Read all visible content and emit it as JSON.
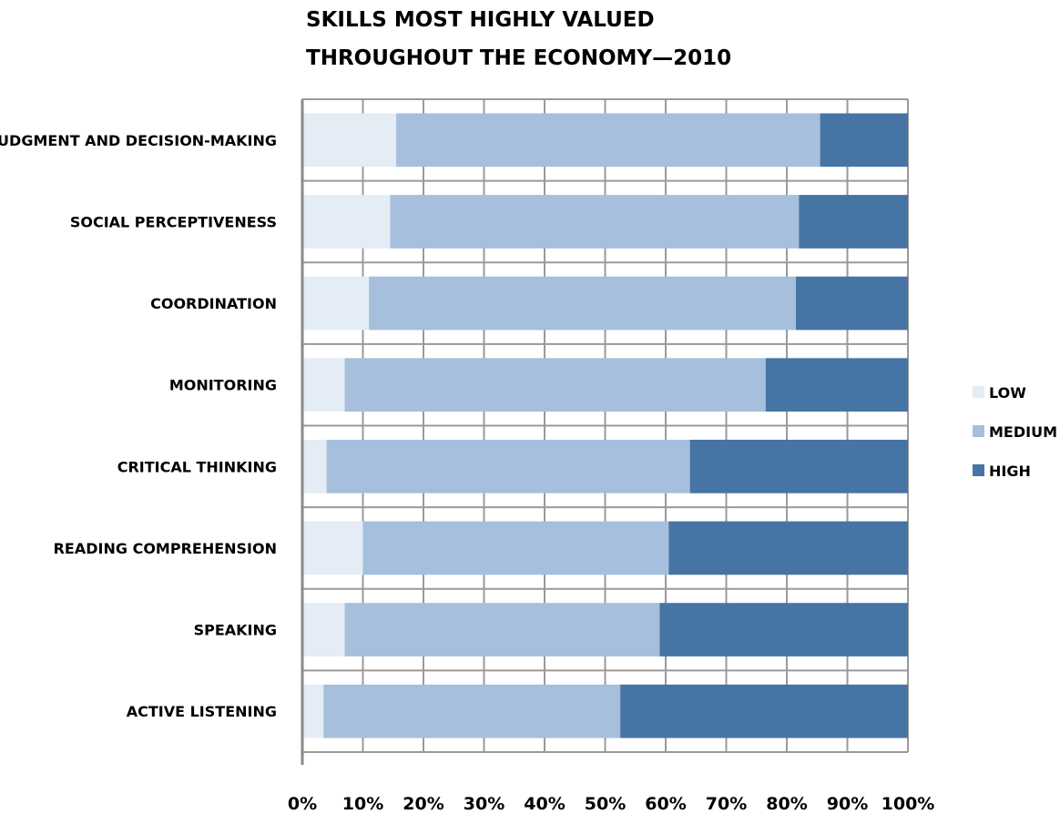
{
  "chart_data": {
    "type": "bar",
    "orientation": "horizontal",
    "stacked": "percent",
    "title_lines": [
      "SKILLS MOST HIGHLY VALUED",
      "THROUGHOUT THE ECONOMY—2010"
    ],
    "categories": [
      "JUDGMENT AND DECISION-MAKING",
      "SOCIAL PERCEPTIVENESS",
      "COORDINATION",
      "MONITORING",
      "CRITICAL THINKING",
      "READING COMPREHENSION",
      "SPEAKING",
      "ACTIVE LISTENING"
    ],
    "series": [
      {
        "name": "LOW",
        "color": "#e4ecf5",
        "values": [
          15.5,
          14.5,
          11,
          7,
          4,
          10,
          7,
          3.5
        ]
      },
      {
        "name": "MEDIUM",
        "color": "#a5bfdd",
        "values": [
          70,
          67.5,
          70.5,
          69.5,
          60,
          50.5,
          52,
          49
        ]
      },
      {
        "name": "HIGH",
        "color": "#4674a4",
        "values": [
          14.5,
          18,
          18.5,
          23.5,
          36,
          39.5,
          41,
          47.5
        ]
      }
    ],
    "xlim": [
      0,
      100
    ],
    "x_ticks": [
      "0%",
      "10%",
      "20%",
      "30%",
      "40%",
      "50%",
      "60%",
      "70%",
      "80%",
      "90%",
      "100%"
    ],
    "grid": true,
    "legend_position": "right"
  }
}
